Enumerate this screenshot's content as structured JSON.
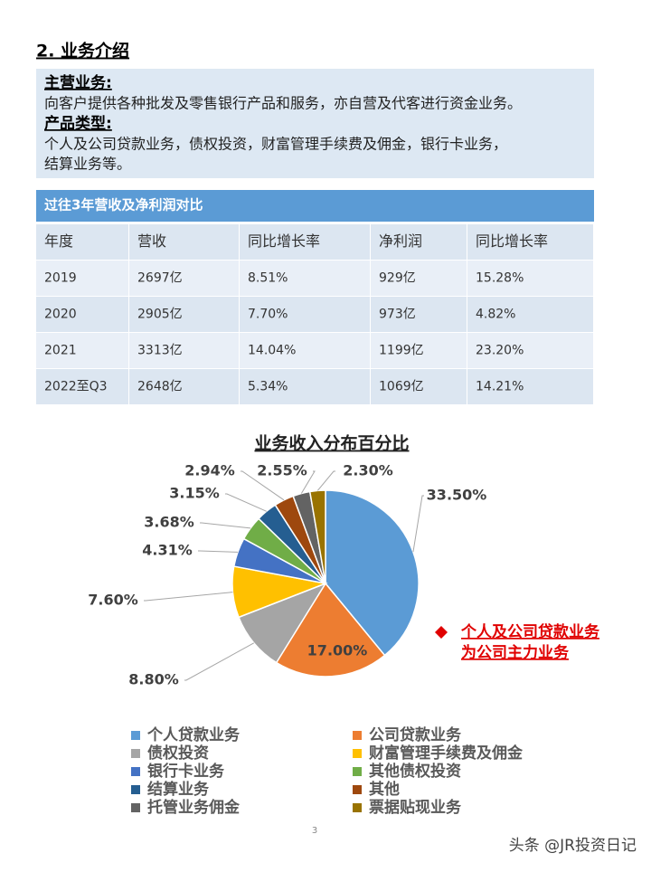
{
  "header": {
    "title": "2. 业务介绍"
  },
  "intro": {
    "main_label": "主营业务:",
    "main_text": "向客户提供各种批发及零售银行产品和服务，亦自营及代客进行资金业务。",
    "product_label": "产品类型:",
    "product_lines": [
      "个人及公司贷款业务，债权投资，财富管理手续费及佣金，银行卡业务，",
      "结算业务等。"
    ]
  },
  "table": {
    "title": "过往3年营收及净利润对比",
    "columns": [
      "年度",
      "营收",
      "同比增长率",
      "净利润",
      "同比增长率"
    ],
    "rows": [
      [
        "2019",
        "2697亿",
        "8.51%",
        "929亿",
        "15.28%"
      ],
      [
        "2020",
        "2905亿",
        "7.70%",
        "973亿",
        "4.82%"
      ],
      [
        "2021",
        "3313亿",
        "14.04%",
        "1199亿",
        "23.20%"
      ],
      [
        "2022至Q3",
        "2648亿",
        "5.34%",
        "1069亿",
        "14.21%"
      ]
    ]
  },
  "chart_data": {
    "type": "pie",
    "title": "业务收入分布百分比",
    "categories": [
      "个人贷款业务",
      "公司贷款业务",
      "债权投资",
      "财富管理手续费及佣金",
      "银行卡业务",
      "其他债权投资",
      "结算业务",
      "其他",
      "托管业务佣金",
      "票据贴现业务"
    ],
    "values": [
      33.5,
      17.0,
      8.8,
      7.6,
      4.31,
      3.68,
      3.15,
      2.94,
      2.55,
      2.3
    ],
    "value_labels": [
      "33.50%",
      "17.00%",
      "8.80%",
      "7.60%",
      "4.31%",
      "3.68%",
      "3.15%",
      "2.94%",
      "2.55%",
      "2.30%"
    ],
    "colors": [
      "#5b9bd5",
      "#ed7d31",
      "#a5a5a5",
      "#ffc000",
      "#4472c4",
      "#70ad47",
      "#255e91",
      "#9e480e",
      "#636363",
      "#997300"
    ],
    "annotation": [
      "个人及公司贷款业务",
      "为公司主力业务"
    ]
  },
  "footer": {
    "page": "3",
    "watermark": "头条 @JR投资日记"
  }
}
